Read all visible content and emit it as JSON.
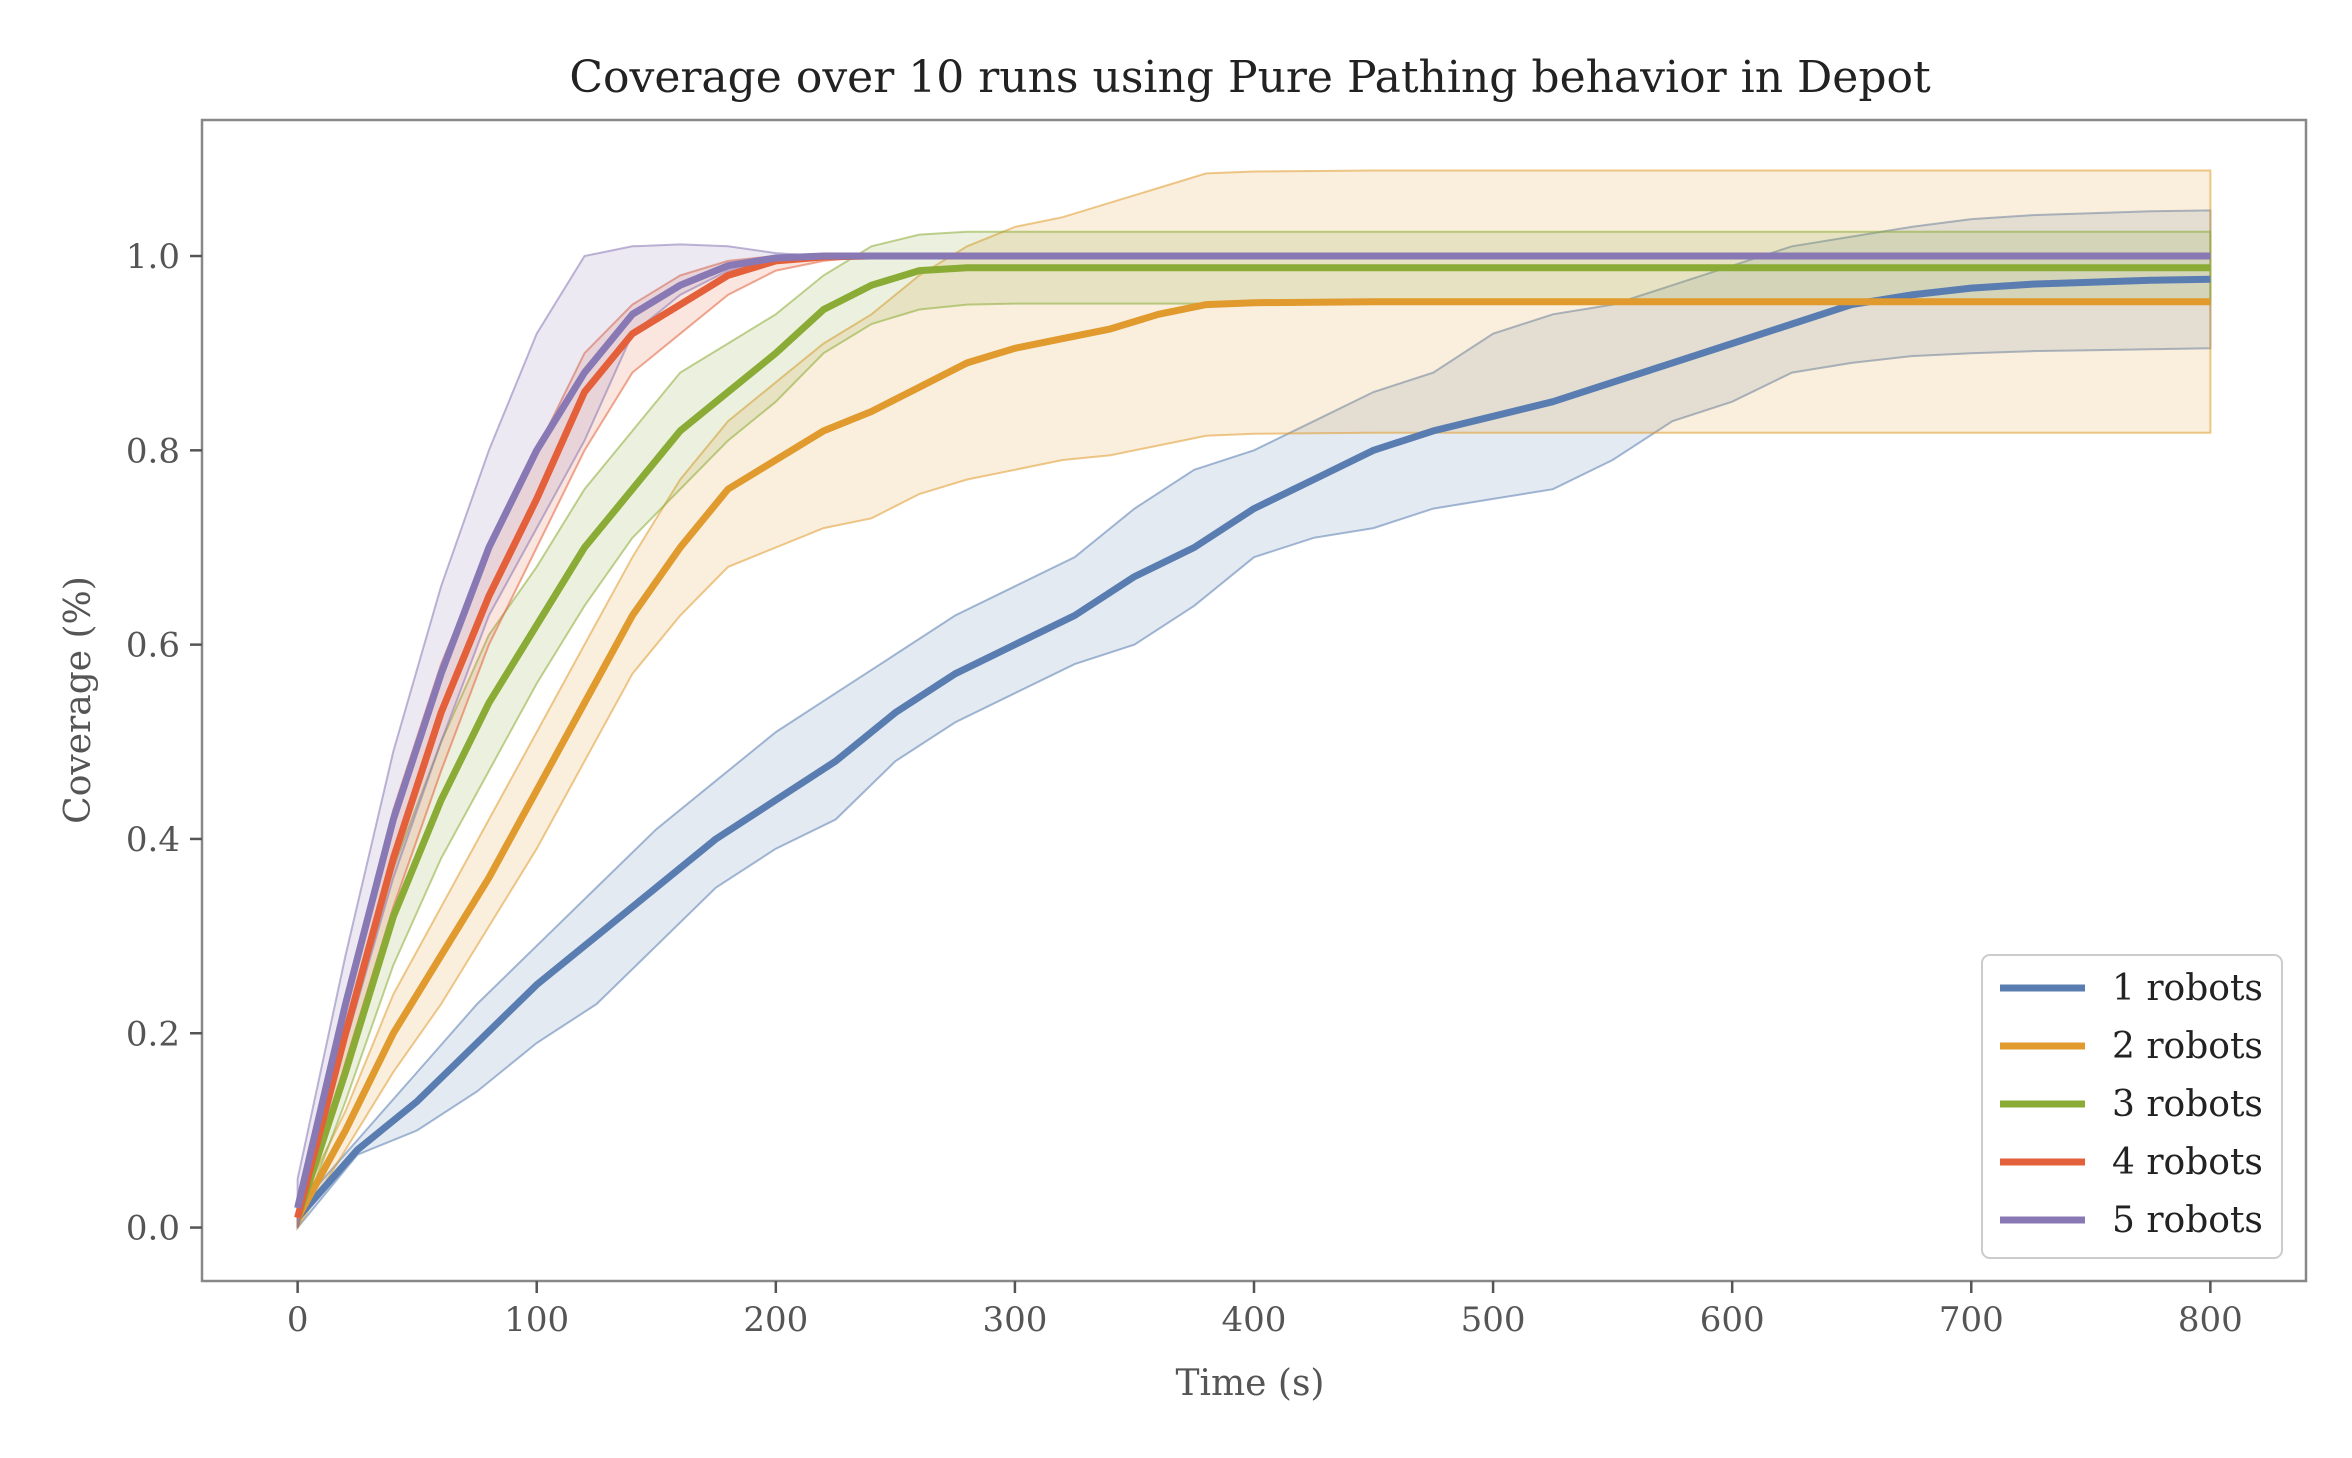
{
  "chart_data": {
    "type": "line",
    "title": "Coverage over 10 runs using Pure Pathing behavior in Depot",
    "xlabel": "Time (s)",
    "ylabel": "Coverage (%)",
    "xlim": [
      -40,
      840
    ],
    "ylim": [
      -0.055,
      1.14
    ],
    "x_ticks": [
      0,
      100,
      200,
      300,
      400,
      500,
      600,
      700,
      800
    ],
    "x_tick_labels": [
      "0",
      "100",
      "200",
      "300",
      "400",
      "500",
      "600",
      "700",
      "800"
    ],
    "y_ticks": [
      0.0,
      0.2,
      0.4,
      0.6,
      0.8,
      1.0
    ],
    "y_tick_labels": [
      "0.0",
      "0.2",
      "0.4",
      "0.6",
      "0.8",
      "1.0"
    ],
    "grid": false,
    "legend_position": "lower-right",
    "series": [
      {
        "name": "1 robots",
        "color": "#5a7db1",
        "x": [
          0,
          25,
          50,
          75,
          100,
          125,
          150,
          175,
          200,
          225,
          250,
          275,
          300,
          325,
          350,
          375,
          400,
          425,
          450,
          475,
          500,
          525,
          550,
          575,
          600,
          625,
          650,
          675,
          700,
          725,
          750,
          775,
          800
        ],
        "mean": [
          0.01,
          0.08,
          0.13,
          0.19,
          0.25,
          0.3,
          0.35,
          0.4,
          0.44,
          0.48,
          0.53,
          0.57,
          0.6,
          0.63,
          0.67,
          0.7,
          0.74,
          0.77,
          0.8,
          0.82,
          0.835,
          0.85,
          0.87,
          0.89,
          0.91,
          0.93,
          0.95,
          0.96,
          0.967,
          0.971,
          0.973,
          0.975,
          0.976
        ],
        "lower": [
          0.0,
          0.075,
          0.1,
          0.14,
          0.19,
          0.23,
          0.29,
          0.35,
          0.39,
          0.42,
          0.48,
          0.52,
          0.55,
          0.58,
          0.6,
          0.64,
          0.69,
          0.71,
          0.72,
          0.74,
          0.75,
          0.76,
          0.79,
          0.83,
          0.85,
          0.88,
          0.89,
          0.897,
          0.9,
          0.902,
          0.903,
          0.904,
          0.905
        ],
        "upper": [
          0.02,
          0.09,
          0.16,
          0.23,
          0.29,
          0.35,
          0.41,
          0.46,
          0.51,
          0.55,
          0.59,
          0.63,
          0.66,
          0.69,
          0.74,
          0.78,
          0.8,
          0.83,
          0.86,
          0.88,
          0.92,
          0.94,
          0.95,
          0.97,
          0.99,
          1.01,
          1.02,
          1.03,
          1.038,
          1.042,
          1.044,
          1.046,
          1.047
        ]
      },
      {
        "name": "2 robots",
        "color": "#e09a2e",
        "x": [
          0,
          20,
          40,
          60,
          80,
          100,
          120,
          140,
          160,
          180,
          200,
          220,
          240,
          260,
          280,
          300,
          320,
          340,
          360,
          380,
          400,
          450,
          500,
          600,
          700,
          800
        ],
        "mean": [
          0.01,
          0.1,
          0.2,
          0.28,
          0.36,
          0.45,
          0.54,
          0.63,
          0.7,
          0.76,
          0.79,
          0.82,
          0.84,
          0.865,
          0.89,
          0.905,
          0.915,
          0.925,
          0.94,
          0.95,
          0.952,
          0.953,
          0.953,
          0.953,
          0.953,
          0.953
        ],
        "lower": [
          0.0,
          0.08,
          0.16,
          0.23,
          0.31,
          0.39,
          0.48,
          0.57,
          0.63,
          0.68,
          0.7,
          0.72,
          0.73,
          0.755,
          0.77,
          0.78,
          0.79,
          0.795,
          0.805,
          0.815,
          0.817,
          0.818,
          0.818,
          0.818,
          0.818,
          0.818
        ],
        "upper": [
          0.02,
          0.12,
          0.24,
          0.33,
          0.42,
          0.51,
          0.6,
          0.69,
          0.77,
          0.83,
          0.87,
          0.91,
          0.94,
          0.98,
          1.01,
          1.03,
          1.04,
          1.055,
          1.07,
          1.085,
          1.087,
          1.088,
          1.088,
          1.088,
          1.088,
          1.088
        ]
      },
      {
        "name": "3 robots",
        "color": "#8aab35",
        "x": [
          0,
          20,
          40,
          60,
          80,
          100,
          120,
          140,
          160,
          180,
          200,
          220,
          240,
          260,
          280,
          300,
          400,
          500,
          600,
          700,
          800
        ],
        "mean": [
          0.01,
          0.16,
          0.32,
          0.44,
          0.54,
          0.62,
          0.7,
          0.76,
          0.82,
          0.86,
          0.9,
          0.945,
          0.97,
          0.985,
          0.988,
          0.988,
          0.988,
          0.988,
          0.988,
          0.988,
          0.988
        ],
        "lower": [
          0.0,
          0.13,
          0.27,
          0.38,
          0.47,
          0.56,
          0.64,
          0.71,
          0.76,
          0.81,
          0.85,
          0.9,
          0.93,
          0.945,
          0.95,
          0.951,
          0.951,
          0.951,
          0.951,
          0.951,
          0.951
        ],
        "upper": [
          0.02,
          0.19,
          0.37,
          0.5,
          0.61,
          0.68,
          0.76,
          0.82,
          0.88,
          0.91,
          0.94,
          0.98,
          1.01,
          1.022,
          1.025,
          1.025,
          1.025,
          1.025,
          1.025,
          1.025,
          1.025
        ]
      },
      {
        "name": "4 robots",
        "color": "#e4603a",
        "x": [
          0,
          20,
          40,
          60,
          80,
          100,
          120,
          140,
          160,
          180,
          200,
          220,
          240,
          260,
          300,
          400,
          500,
          600,
          700,
          800
        ],
        "mean": [
          0.01,
          0.2,
          0.38,
          0.53,
          0.65,
          0.75,
          0.86,
          0.92,
          0.95,
          0.98,
          0.995,
          0.999,
          1.0,
          1.0,
          1.0,
          1.0,
          1.0,
          1.0,
          1.0,
          1.0
        ],
        "lower": [
          0.0,
          0.17,
          0.33,
          0.47,
          0.6,
          0.7,
          0.8,
          0.88,
          0.92,
          0.96,
          0.985,
          0.995,
          1.0,
          1.0,
          1.0,
          1.0,
          1.0,
          1.0,
          1.0,
          1.0
        ],
        "upper": [
          0.02,
          0.23,
          0.43,
          0.58,
          0.7,
          0.8,
          0.9,
          0.95,
          0.98,
          0.995,
          1.0,
          1.0,
          1.0,
          1.0,
          1.0,
          1.0,
          1.0,
          1.0,
          1.0,
          1.0
        ]
      },
      {
        "name": "5 robots",
        "color": "#8878b4",
        "x": [
          0,
          20,
          40,
          60,
          80,
          100,
          120,
          140,
          160,
          180,
          200,
          220,
          240,
          300,
          400,
          500,
          600,
          700,
          800
        ],
        "mean": [
          0.02,
          0.23,
          0.42,
          0.57,
          0.7,
          0.8,
          0.88,
          0.94,
          0.97,
          0.99,
          0.998,
          1.0,
          1.0,
          1.0,
          1.0,
          1.0,
          1.0,
          1.0,
          1.0
        ],
        "lower": [
          0.0,
          0.19,
          0.36,
          0.5,
          0.63,
          0.72,
          0.81,
          0.92,
          0.96,
          0.985,
          0.995,
          1.0,
          1.0,
          1.0,
          1.0,
          1.0,
          1.0,
          1.0,
          1.0
        ],
        "upper": [
          0.05,
          0.28,
          0.49,
          0.66,
          0.8,
          0.92,
          1.0,
          1.01,
          1.012,
          1.01,
          1.003,
          1.0,
          1.0,
          1.0,
          1.0,
          1.0,
          1.0,
          1.0,
          1.0
        ]
      }
    ]
  }
}
